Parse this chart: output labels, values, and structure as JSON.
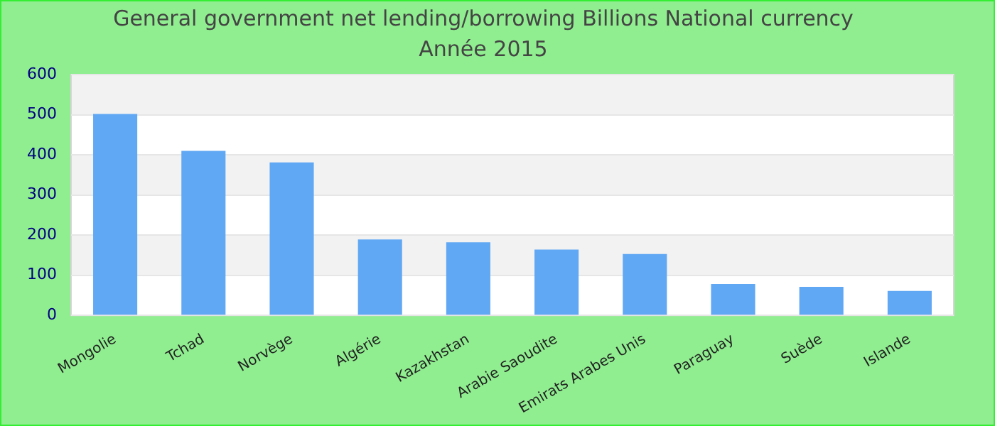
{
  "chart_data": {
    "type": "bar",
    "title": "General government net lending/borrowing Billions National currency",
    "subtitle": "Année 2015",
    "categories": [
      "Mongolie",
      "Tchad",
      "Norvège",
      "Algérie",
      "Kazakhstan",
      "Arabie Saoudite",
      "Emirats Arabes Unis",
      "Paraguay",
      "Suède",
      "Islande"
    ],
    "values": [
      502,
      410,
      381,
      189,
      182,
      164,
      153,
      78,
      71,
      61
    ],
    "color": "#61a8f4",
    "ylim": [
      0,
      600
    ],
    "yticks": [
      0,
      100,
      200,
      300,
      400,
      500,
      600
    ],
    "grid": "y",
    "legend": false
  }
}
